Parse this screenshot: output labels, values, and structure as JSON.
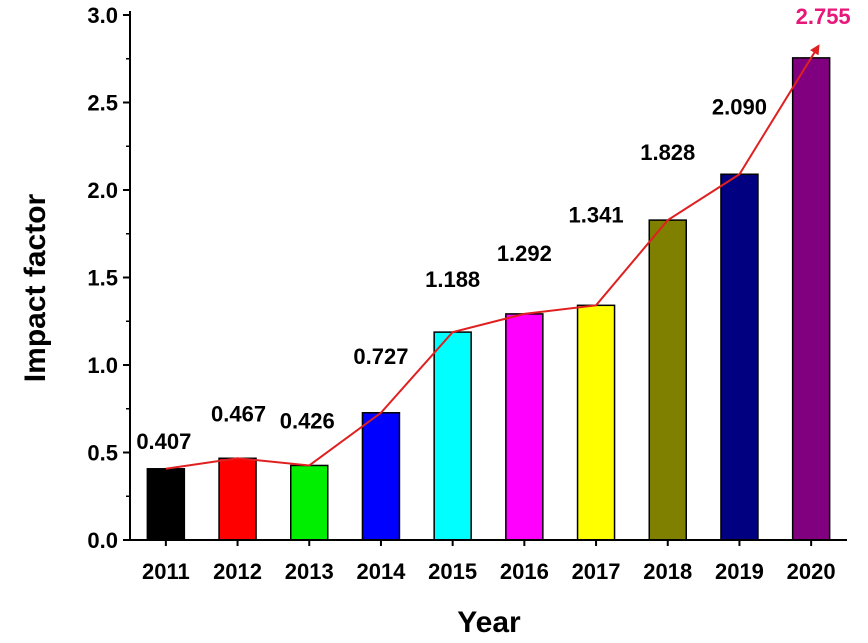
{
  "chart_data": {
    "type": "bar",
    "title": "",
    "xlabel": "Year",
    "ylabel": "Impact factor",
    "categories": [
      "2011",
      "2012",
      "2013",
      "2014",
      "2015",
      "2016",
      "2017",
      "2018",
      "2019",
      "2020"
    ],
    "values": [
      0.407,
      0.467,
      0.426,
      0.727,
      1.188,
      1.292,
      1.341,
      1.828,
      2.09,
      2.755
    ],
    "value_labels": [
      "0.407",
      "0.467",
      "0.426",
      "0.727",
      "1.188",
      "1.292",
      "1.341",
      "1.828",
      "2.090",
      "2.755"
    ],
    "bar_colors": [
      "#000000",
      "#ff0000",
      "#00ee00",
      "#0000ff",
      "#00ffff",
      "#ff00ff",
      "#ffff00",
      "#808000",
      "#000080",
      "#800080"
    ],
    "label_colors": [
      "#000000",
      "#000000",
      "#000000",
      "#000000",
      "#000000",
      "#000000",
      "#000000",
      "#000000",
      "#000000",
      "#e8177a"
    ],
    "trend_line": {
      "color": "#e02020",
      "arrow_at_end": true
    },
    "ylim": [
      0,
      3.0
    ],
    "yticks": [
      "0.0",
      "0.5",
      "1.0",
      "1.5",
      "2.0",
      "2.5",
      "3.0"
    ],
    "ytick_values": [
      0,
      0.5,
      1.0,
      1.5,
      2.0,
      2.5,
      3.0
    ],
    "grid": false,
    "legend": "none"
  }
}
